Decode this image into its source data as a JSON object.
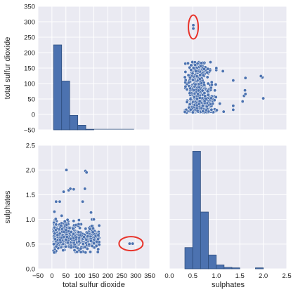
{
  "colors": {
    "panel_bg": "#eaeaf2",
    "grid": "#ffffff",
    "mark": "#4c72b0",
    "mark_edge": "#2f4f7f",
    "highlight": "#e8332a"
  },
  "chart_data": {
    "type": "pairplot",
    "grid": true,
    "variables": [
      "total sulfur dioxide",
      "sulphates"
    ],
    "axis_labels": {
      "x_left": "total sulfur dioxide",
      "x_right": "sulphates",
      "y_top": "total sulfur dioxide",
      "y_bottom": "sulphates"
    },
    "ranges": {
      "total sulfur dioxide": [
        -50,
        350
      ],
      "sulphates": [
        0,
        2.5
      ]
    },
    "ticks": {
      "tsd": [
        -50,
        0,
        50,
        100,
        150,
        200,
        250,
        300,
        350
      ],
      "tsd_labels": [
        "−50",
        "0",
        "50",
        "100",
        "150",
        "200",
        "250",
        "300",
        "350"
      ],
      "sul": [
        0.0,
        0.5,
        1.0,
        1.5,
        2.0,
        2.5
      ],
      "sul_labels": [
        "0.0",
        "0.5",
        "1.0",
        "1.5",
        "2.0",
        "2.5"
      ]
    },
    "histogram_tsd": {
      "bin_edges": [
        6,
        34.8,
        63.6,
        92.4,
        121.2,
        150,
        178.8,
        207.6,
        236.4,
        265.2,
        294
      ],
      "counts": [
        275,
        158,
        47,
        15,
        2,
        0,
        0,
        0,
        0,
        0
      ]
    },
    "histogram_sulphates": {
      "bin_edges": [
        0.33,
        0.497,
        0.664,
        0.831,
        0.998,
        1.165,
        1.332,
        1.499,
        1.666,
        1.833,
        2.0
      ],
      "counts": [
        0.43,
        2.38,
        1.15,
        0.28,
        0.08,
        0.03,
        0.02,
        0,
        0,
        0.02
      ]
    },
    "outliers": [
      {
        "sulphates": 0.51,
        "total sulfur dioxide": 278
      },
      {
        "sulphates": 0.51,
        "total sulfur dioxide": 289
      }
    ],
    "scatter_extremes": [
      {
        "total sulfur dioxide": 52,
        "sulphates": 2.0
      },
      {
        "total sulfur dioxide": 120,
        "sulphates": 1.98
      },
      {
        "total sulfur dioxide": 124,
        "sulphates": 1.95
      },
      {
        "total sulfur dioxide": 60,
        "sulphates": 1.59
      },
      {
        "total sulfur dioxide": 66,
        "sulphates": 1.62
      },
      {
        "total sulfur dioxide": 78,
        "sulphates": 1.61
      },
      {
        "total sulfur dioxide": 118,
        "sulphates": 1.62
      },
      {
        "total sulfur dioxide": 42,
        "sulphates": 1.56
      },
      {
        "total sulfur dioxide": 15,
        "sulphates": 1.36
      },
      {
        "total sulfur dioxide": 28,
        "sulphates": 1.36
      },
      {
        "total sulfur dioxide": 110,
        "sulphates": 1.36
      },
      {
        "total sulfur dioxide": 140,
        "sulphates": 1.14
      },
      {
        "total sulfur dioxide": 150,
        "sulphates": 1.0
      },
      {
        "total sulfur dioxide": 165,
        "sulphates": 0.6
      },
      {
        "total sulfur dioxide": 160,
        "sulphates": 0.55
      },
      {
        "total sulfur dioxide": 8,
        "sulphates": 0.33
      }
    ],
    "highlights": [
      {
        "panel": "top-right",
        "sulphates": 0.51,
        "total sulfur dioxide": 283
      },
      {
        "panel": "bottom-left",
        "total sulfur dioxide": 283,
        "sulphates": 0.51
      }
    ]
  }
}
